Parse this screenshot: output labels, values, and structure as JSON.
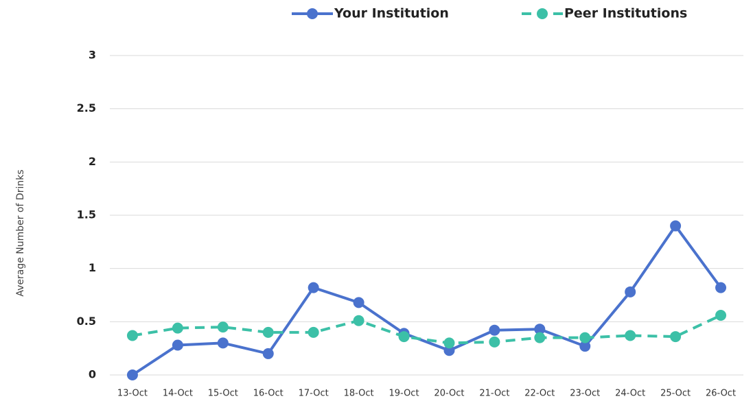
{
  "chart_data": {
    "type": "line",
    "y_label": "Average Number of Drinks",
    "categories": [
      "13-Oct",
      "14-Oct",
      "15-Oct",
      "16-Oct",
      "17-Oct",
      "18-Oct",
      "19-Oct",
      "20-Oct",
      "21-Oct",
      "22-Oct",
      "23-Oct",
      "24-Oct",
      "25-Oct",
      "26-Oct"
    ],
    "series": [
      {
        "name": "Your Institution",
        "color": "#4a72cd",
        "dashed": false,
        "values": [
          0,
          0.28,
          0.3,
          0.2,
          0.82,
          0.68,
          0.39,
          0.23,
          0.42,
          0.43,
          0.27,
          0.78,
          1.4,
          0.82
        ]
      },
      {
        "name": "Peer Institutions",
        "color": "#3cc0a7",
        "dashed": true,
        "values": [
          0.37,
          0.44,
          0.45,
          0.4,
          0.4,
          0.51,
          0.36,
          0.3,
          0.31,
          0.35,
          0.35,
          0.37,
          0.36,
          0.56
        ]
      }
    ],
    "ylim": [
      0,
      3
    ],
    "yticks": [
      0,
      0.5,
      1,
      1.5,
      2,
      2.5,
      3
    ],
    "grid": true,
    "legend": "top"
  }
}
